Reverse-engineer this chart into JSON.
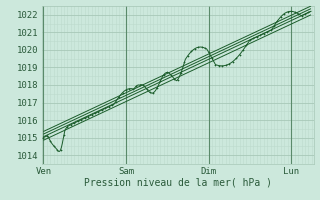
{
  "xlabel": "Pression niveau de la mer( hPa )",
  "x_ticks_labels": [
    "Ven",
    "Sam",
    "Dim",
    "Lun"
  ],
  "x_ticks_positions": [
    0,
    96,
    192,
    288
  ],
  "ylim": [
    1013.5,
    1022.5
  ],
  "yticks": [
    1014,
    1015,
    1016,
    1017,
    1018,
    1019,
    1020,
    1021,
    1022
  ],
  "bg_color": "#cce8dc",
  "grid_major_color": "#a8c8b8",
  "grid_minor_color": "#bcdacc",
  "line_color": "#1a5c2a",
  "total_points": 312,
  "fig_width": 3.2,
  "fig_height": 2.0,
  "dpi": 100
}
